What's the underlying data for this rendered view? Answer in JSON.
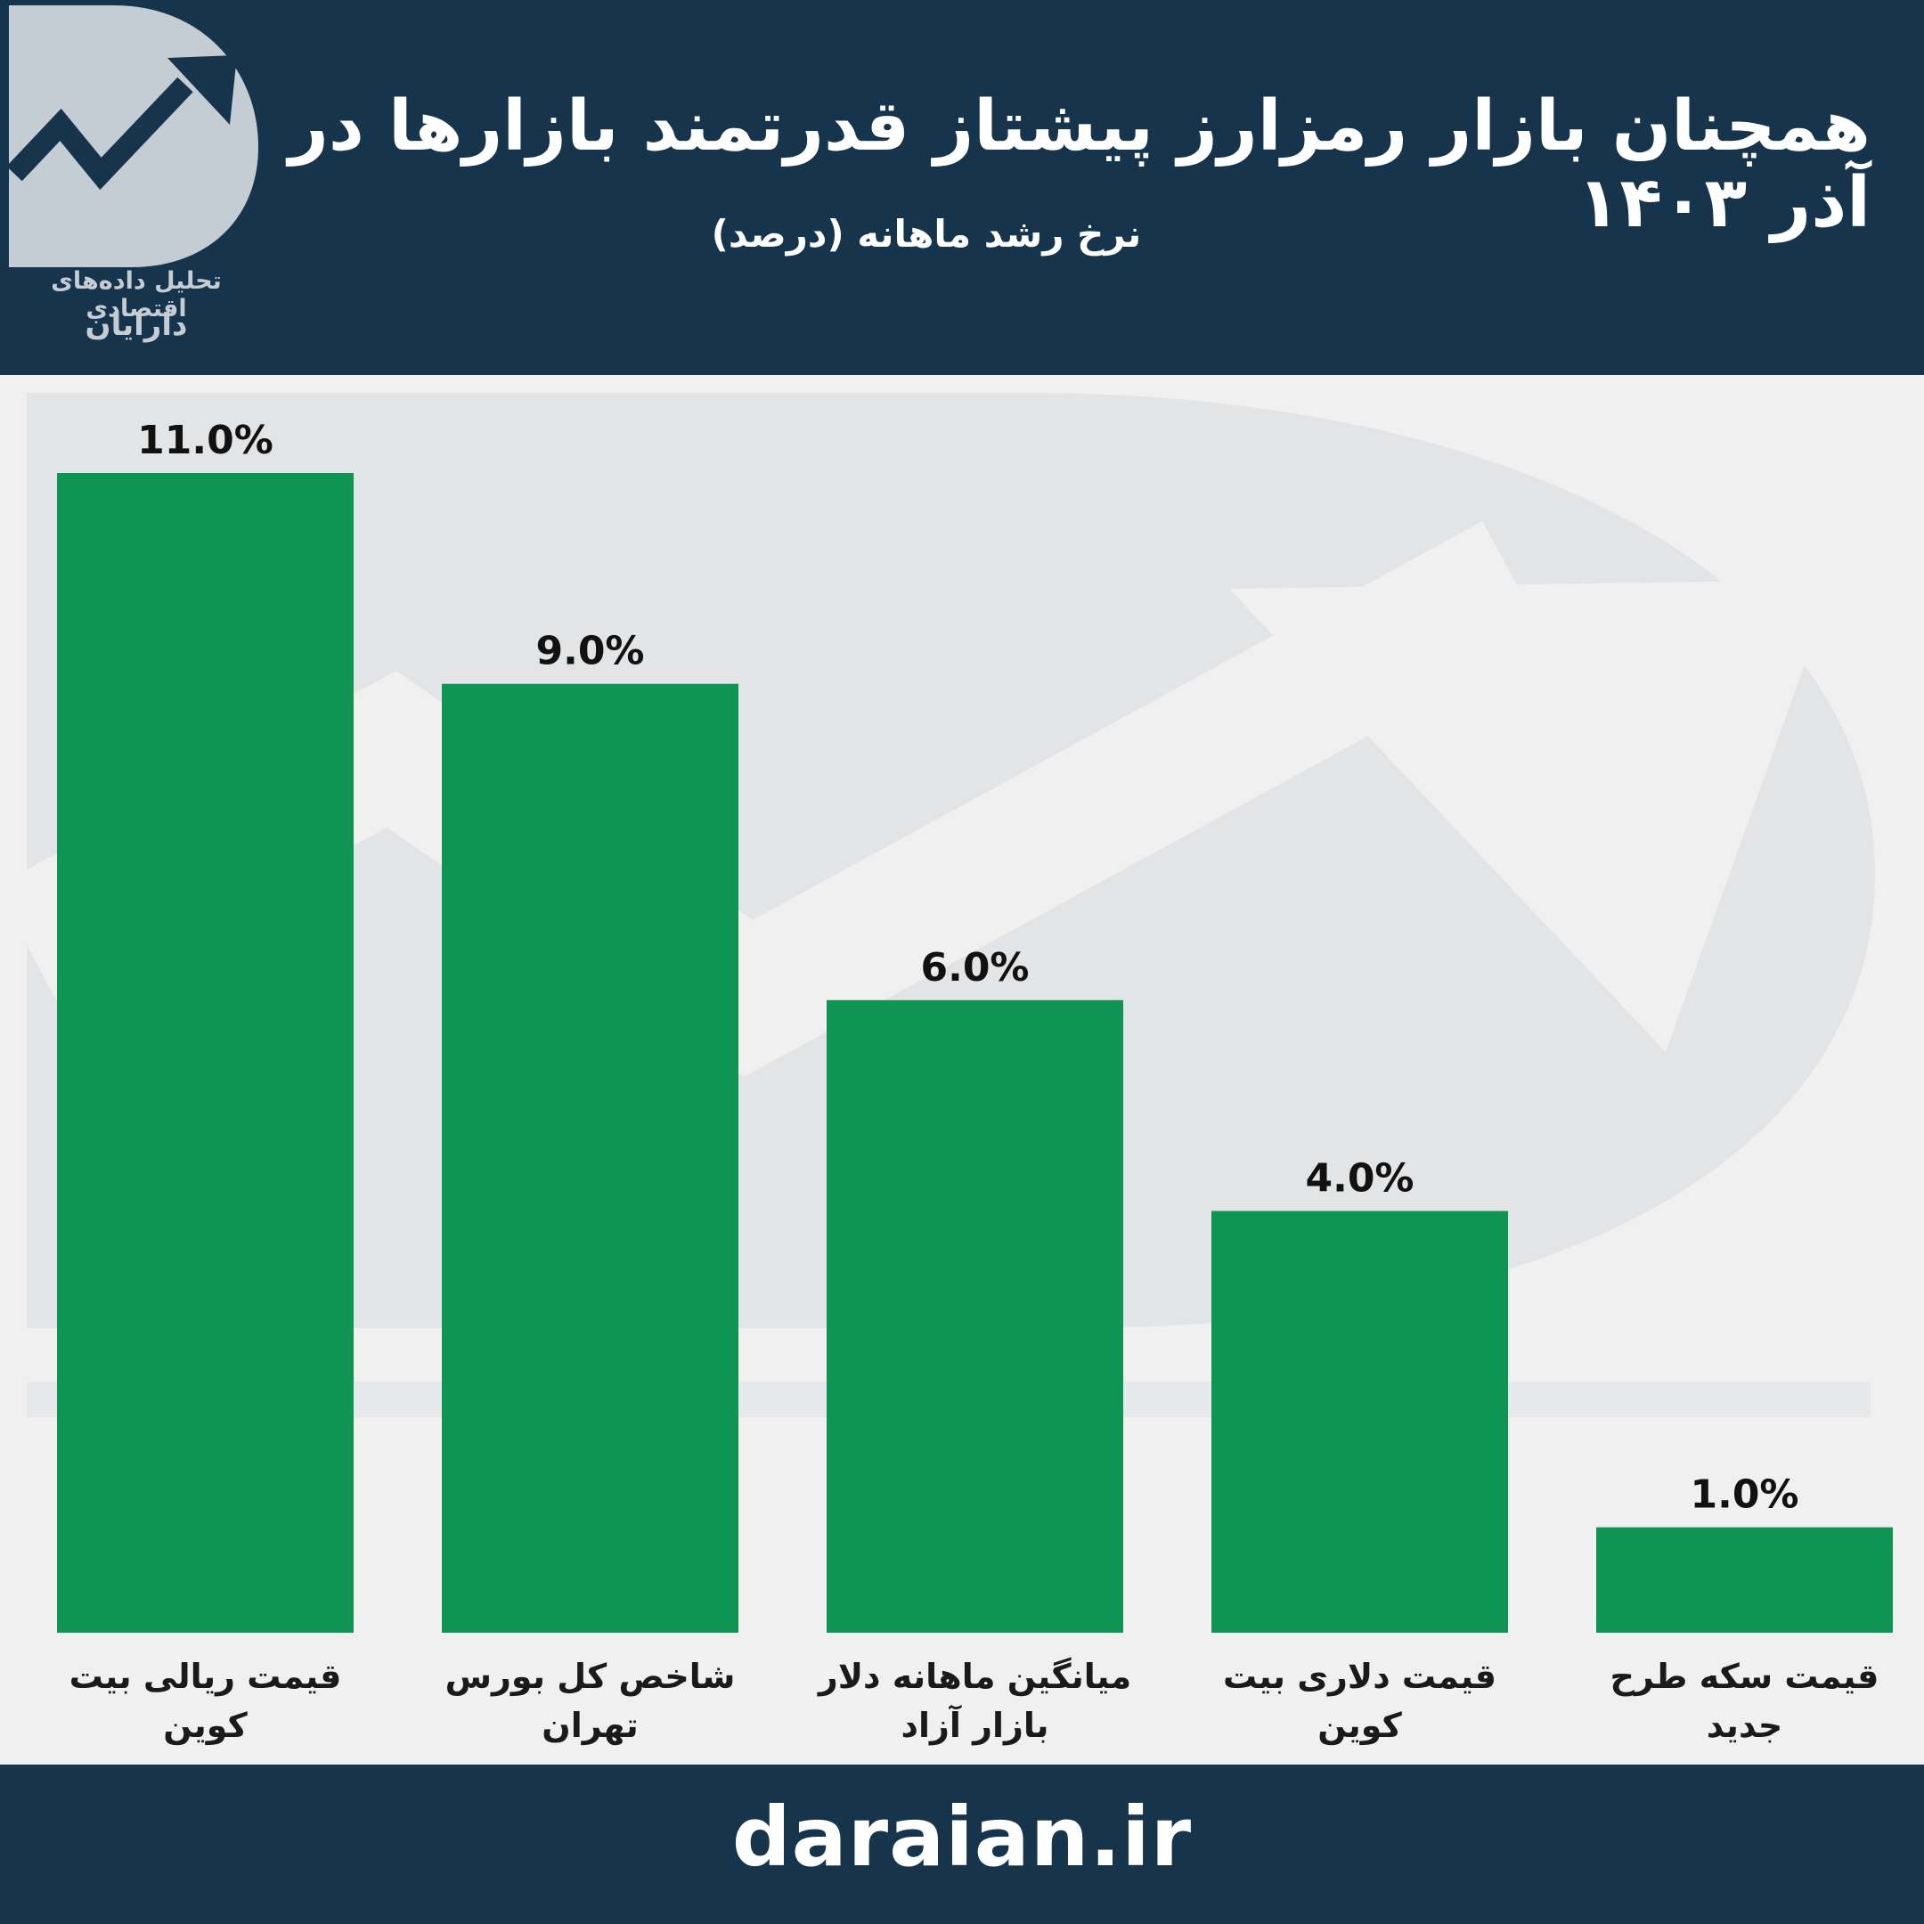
{
  "header": {
    "title": "همچنان بازار رمزارز پیشتاز قدرتمند بازارها در آذر ۱۴۰۳",
    "subtitle": "نرخ رشد ماهانه (درصد)",
    "logo_caption_line1": "تحلیل داده‌های اقتصادی",
    "logo_caption_line2": "دارایان",
    "logo_icon": "rising-arrow-d-logo-icon"
  },
  "colors": {
    "header_bg": "#17344d",
    "bar": "#109454",
    "plot_bg": "#f0f0f0",
    "watermark": "#e2e4e6"
  },
  "chart_data": {
    "type": "bar",
    "title": "",
    "xlabel": "",
    "ylabel": "",
    "ylim": [
      0,
      11
    ],
    "grid": false,
    "categories": [
      "قیمت ریالی بیت کوین",
      "شاخص کل بورس تهران",
      "میانگین ماهانه دلار بازار آزاد",
      "قیمت دلاری بیت کوین",
      "قیمت سکه طرح جدید"
    ],
    "values": [
      11.0,
      9.0,
      6.0,
      4.0,
      1.0
    ],
    "value_labels": [
      "11.0%",
      "9.0%",
      "6.0%",
      "4.0%",
      "1.0%"
    ]
  },
  "footer": {
    "url": "daraian.ir"
  }
}
